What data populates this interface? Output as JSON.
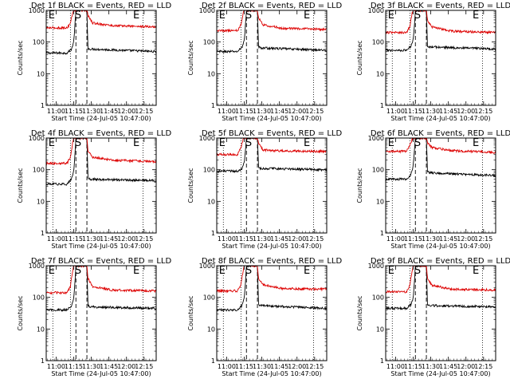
{
  "chart_data": [
    {
      "type": "line",
      "title": "Det 1f BLACK = Events, RED = LLD",
      "xlabel": "Start Time (24-Jul-05 10:47:00)",
      "ylabel": "Counts/sec",
      "yscale": "log",
      "ylim": [
        1,
        1000
      ],
      "xlim": [
        0,
        100
      ],
      "x_ticks": [
        "11:00",
        "11:15",
        "11:30",
        "11:45",
        "12:00",
        "12:15"
      ],
      "y_ticks": [
        "1",
        "10",
        "100",
        "1000"
      ],
      "markers": [
        "E",
        "S",
        "E"
      ],
      "baseline": {
        "black": 50,
        "red": 300
      },
      "series": [
        {
          "color": "#000000",
          "values": [
            [
              0,
              45
            ],
            [
              19,
              45
            ],
            [
              23,
              60
            ],
            [
              25,
              100
            ],
            [
              26,
              300
            ],
            [
              27,
              1000
            ],
            [
              37,
              1000
            ],
            [
              38,
              60
            ],
            [
              40,
              60
            ],
            [
              100,
              50
            ]
          ]
        },
        {
          "color": "#dd0000",
          "values": [
            [
              0,
              280
            ],
            [
              19,
              280
            ],
            [
              22,
              400
            ],
            [
              24,
              800
            ],
            [
              25,
              1000
            ],
            [
              37,
              1000
            ],
            [
              38,
              700
            ],
            [
              42,
              400
            ],
            [
              60,
              330
            ],
            [
              100,
              300
            ]
          ]
        }
      ]
    },
    {
      "type": "line",
      "title": "Det 2f BLACK = Events, RED = LLD",
      "xlabel": "Start Time (24-Jul-05 10:47:00)",
      "ylabel": "Counts/sec",
      "yscale": "log",
      "ylim": [
        1,
        1000
      ],
      "xlim": [
        0,
        100
      ],
      "x_ticks": [
        "11:00",
        "11:15",
        "11:30",
        "11:45",
        "12:00",
        "12:15"
      ],
      "y_ticks": [
        "1",
        "10",
        "100",
        "1000"
      ],
      "markers": [
        "E",
        "S",
        "E"
      ],
      "baseline": {
        "black": 55,
        "red": 250
      },
      "series": [
        {
          "color": "#000000",
          "values": [
            [
              0,
              50
            ],
            [
              19,
              50
            ],
            [
              23,
              70
            ],
            [
              25,
              110
            ],
            [
              26,
              300
            ],
            [
              27,
              1000
            ],
            [
              37,
              1000
            ],
            [
              38,
              70
            ],
            [
              40,
              65
            ],
            [
              100,
              55
            ]
          ]
        },
        {
          "color": "#dd0000",
          "values": [
            [
              0,
              230
            ],
            [
              19,
              230
            ],
            [
              22,
              350
            ],
            [
              24,
              800
            ],
            [
              25,
              1000
            ],
            [
              37,
              1000
            ],
            [
              38,
              600
            ],
            [
              42,
              350
            ],
            [
              60,
              270
            ],
            [
              100,
              250
            ]
          ]
        }
      ]
    },
    {
      "type": "line",
      "title": "Det 3f BLACK = Events, RED = LLD",
      "xlabel": "Start Time (24-Jul-05 10:47:00)",
      "ylabel": "Counts/sec",
      "yscale": "log",
      "ylim": [
        1,
        1000
      ],
      "xlim": [
        0,
        100
      ],
      "x_ticks": [
        "11:00",
        "11:15",
        "11:30",
        "11:45",
        "12:00",
        "12:15"
      ],
      "y_ticks": [
        "1",
        "10",
        "100",
        "1000"
      ],
      "markers": [
        "E",
        "S",
        "E"
      ],
      "baseline": {
        "black": 60,
        "red": 200
      },
      "series": [
        {
          "color": "#000000",
          "values": [
            [
              0,
              55
            ],
            [
              19,
              55
            ],
            [
              23,
              75
            ],
            [
              25,
              120
            ],
            [
              26,
              300
            ],
            [
              27,
              1000
            ],
            [
              37,
              1000
            ],
            [
              38,
              75
            ],
            [
              40,
              70
            ],
            [
              100,
              60
            ]
          ]
        },
        {
          "color": "#dd0000",
          "values": [
            [
              0,
              200
            ],
            [
              19,
              200
            ],
            [
              22,
              320
            ],
            [
              24,
              800
            ],
            [
              25,
              1000
            ],
            [
              37,
              1000
            ],
            [
              38,
              500
            ],
            [
              42,
              300
            ],
            [
              60,
              220
            ],
            [
              100,
              200
            ]
          ]
        }
      ]
    },
    {
      "type": "line",
      "title": "Det 4f BLACK = Events, RED = LLD",
      "xlabel": "Start Time (24-Jul-05 10:47:00)",
      "ylabel": "Counts/sec",
      "yscale": "log",
      "ylim": [
        1,
        1000
      ],
      "xlim": [
        0,
        100
      ],
      "x_ticks": [
        "11:00",
        "11:15",
        "11:30",
        "11:45",
        "12:00",
        "12:15"
      ],
      "y_ticks": [
        "1",
        "10",
        "100",
        "1000"
      ],
      "markers": [
        "E",
        "S",
        "E"
      ],
      "baseline": {
        "black": 45,
        "red": 180
      },
      "series": [
        {
          "color": "#000000",
          "values": [
            [
              0,
              35
            ],
            [
              19,
              35
            ],
            [
              23,
              50
            ],
            [
              25,
              90
            ],
            [
              26,
              250
            ],
            [
              27,
              1000
            ],
            [
              37,
              1000
            ],
            [
              38,
              55
            ],
            [
              40,
              50
            ],
            [
              100,
              45
            ]
          ]
        },
        {
          "color": "#dd0000",
          "values": [
            [
              0,
              160
            ],
            [
              19,
              160
            ],
            [
              22,
              250
            ],
            [
              24,
              700
            ],
            [
              25,
              1000
            ],
            [
              37,
              1000
            ],
            [
              38,
              400
            ],
            [
              42,
              250
            ],
            [
              60,
              200
            ],
            [
              100,
              180
            ]
          ]
        }
      ]
    },
    {
      "type": "line",
      "title": "Det 5f BLACK = Events, RED = LLD",
      "xlabel": "Start Time (24-Jul-05 10:47:00)",
      "ylabel": "Counts/sec",
      "yscale": "log",
      "ylim": [
        1,
        1000
      ],
      "xlim": [
        0,
        100
      ],
      "x_ticks": [
        "11:00",
        "11:15",
        "11:30",
        "11:45",
        "12:00",
        "12:15"
      ],
      "y_ticks": [
        "1",
        "10",
        "100",
        "1000"
      ],
      "markers": [
        "E",
        "S",
        "E"
      ],
      "baseline": {
        "black": 100,
        "red": 380
      },
      "series": [
        {
          "color": "#000000",
          "values": [
            [
              0,
              90
            ],
            [
              19,
              90
            ],
            [
              23,
              110
            ],
            [
              25,
              170
            ],
            [
              26,
              400
            ],
            [
              27,
              1000
            ],
            [
              37,
              1000
            ],
            [
              38,
              120
            ],
            [
              40,
              110
            ],
            [
              100,
              100
            ]
          ]
        },
        {
          "color": "#dd0000",
          "values": [
            [
              0,
              300
            ],
            [
              19,
              300
            ],
            [
              22,
              500
            ],
            [
              24,
              900
            ],
            [
              25,
              1000
            ],
            [
              37,
              1000
            ],
            [
              38,
              700
            ],
            [
              42,
              420
            ],
            [
              60,
              390
            ],
            [
              100,
              380
            ]
          ]
        }
      ]
    },
    {
      "type": "line",
      "title": "Det 6f BLACK = Events, RED = LLD",
      "xlabel": "Start Time (24-Jul-05 10:47:00)",
      "ylabel": "Counts/sec",
      "yscale": "log",
      "ylim": [
        1,
        1000
      ],
      "xlim": [
        0,
        100
      ],
      "x_ticks": [
        "11:00",
        "11:15",
        "11:30",
        "11:45",
        "12:00",
        "12:15"
      ],
      "y_ticks": [
        "1",
        "10",
        "100",
        "1000"
      ],
      "markers": [
        "E",
        "S",
        "E"
      ],
      "baseline": {
        "black": 65,
        "red": 350
      },
      "series": [
        {
          "color": "#000000",
          "values": [
            [
              0,
              50
            ],
            [
              19,
              50
            ],
            [
              23,
              70
            ],
            [
              25,
              130
            ],
            [
              26,
              350
            ],
            [
              27,
              1000
            ],
            [
              37,
              1000
            ],
            [
              38,
              90
            ],
            [
              40,
              80
            ],
            [
              100,
              65
            ]
          ]
        },
        {
          "color": "#dd0000",
          "values": [
            [
              0,
              380
            ],
            [
              19,
              380
            ],
            [
              22,
              600
            ],
            [
              24,
              900
            ],
            [
              25,
              1000
            ],
            [
              37,
              1000
            ],
            [
              38,
              700
            ],
            [
              42,
              500
            ],
            [
              60,
              400
            ],
            [
              100,
              350
            ]
          ]
        }
      ]
    },
    {
      "type": "line",
      "title": "Det 7f BLACK = Events, RED = LLD",
      "xlabel": "Start Time (24-Jul-05 10:47:00)",
      "ylabel": "Counts/sec",
      "yscale": "log",
      "ylim": [
        1,
        1000
      ],
      "xlim": [
        0,
        100
      ],
      "x_ticks": [
        "11:00",
        "11:15",
        "11:30",
        "11:45",
        "12:00",
        "12:15"
      ],
      "y_ticks": [
        "1",
        "10",
        "100",
        "1000"
      ],
      "markers": [
        "E",
        "S",
        "E"
      ],
      "baseline": {
        "black": 45,
        "red": 160
      },
      "series": [
        {
          "color": "#000000",
          "values": [
            [
              0,
              40
            ],
            [
              19,
              40
            ],
            [
              23,
              55
            ],
            [
              25,
              90
            ],
            [
              26,
              250
            ],
            [
              27,
              1000
            ],
            [
              37,
              1000
            ],
            [
              38,
              55
            ],
            [
              40,
              50
            ],
            [
              100,
              45
            ]
          ]
        },
        {
          "color": "#dd0000",
          "values": [
            [
              0,
              140
            ],
            [
              19,
              140
            ],
            [
              22,
              220
            ],
            [
              24,
              700
            ],
            [
              25,
              1000
            ],
            [
              37,
              1000
            ],
            [
              38,
              400
            ],
            [
              42,
              220
            ],
            [
              60,
              170
            ],
            [
              100,
              160
            ]
          ]
        }
      ]
    },
    {
      "type": "line",
      "title": "Det 8f BLACK = Events, RED = LLD",
      "xlabel": "Start Time (24-Jul-05 10:47:00)",
      "ylabel": "Counts/sec",
      "yscale": "log",
      "ylim": [
        1,
        1000
      ],
      "xlim": [
        0,
        100
      ],
      "x_ticks": [
        "11:00",
        "11:15",
        "11:30",
        "11:45",
        "12:00",
        "12:15"
      ],
      "y_ticks": [
        "1",
        "10",
        "100",
        "1000"
      ],
      "markers": [
        "E",
        "S",
        "E"
      ],
      "baseline": {
        "black": 45,
        "red": 180
      },
      "series": [
        {
          "color": "#000000",
          "values": [
            [
              0,
              40
            ],
            [
              19,
              40
            ],
            [
              23,
              55
            ],
            [
              25,
              95
            ],
            [
              26,
              260
            ],
            [
              27,
              1000
            ],
            [
              37,
              1000
            ],
            [
              38,
              60
            ],
            [
              40,
              55
            ],
            [
              100,
              45
            ]
          ]
        },
        {
          "color": "#dd0000",
          "values": [
            [
              0,
              160
            ],
            [
              19,
              160
            ],
            [
              22,
              250
            ],
            [
              24,
              700
            ],
            [
              25,
              1000
            ],
            [
              37,
              1000
            ],
            [
              38,
              400
            ],
            [
              42,
              250
            ],
            [
              60,
              190
            ],
            [
              100,
              180
            ]
          ]
        }
      ]
    },
    {
      "type": "line",
      "title": "Det 9f BLACK = Events, RED = LLD",
      "xlabel": "Start Time (24-Jul-05 10:47:00)",
      "ylabel": "Counts/sec",
      "yscale": "log",
      "ylim": [
        1,
        1000
      ],
      "xlim": [
        0,
        100
      ],
      "x_ticks": [
        "11:00",
        "11:15",
        "11:30",
        "11:45",
        "12:00",
        "12:15"
      ],
      "y_ticks": [
        "1",
        "10",
        "100",
        "1000"
      ],
      "markers": [
        "E",
        "S",
        "E"
      ],
      "baseline": {
        "black": 50,
        "red": 170
      },
      "series": [
        {
          "color": "#000000",
          "values": [
            [
              0,
              45
            ],
            [
              19,
              45
            ],
            [
              23,
              60
            ],
            [
              25,
              95
            ],
            [
              26,
              260
            ],
            [
              27,
              1000
            ],
            [
              37,
              1000
            ],
            [
              38,
              60
            ],
            [
              40,
              55
            ],
            [
              100,
              50
            ]
          ]
        },
        {
          "color": "#dd0000",
          "values": [
            [
              0,
              150
            ],
            [
              19,
              150
            ],
            [
              22,
              240
            ],
            [
              24,
              700
            ],
            [
              25,
              1000
            ],
            [
              37,
              1000
            ],
            [
              38,
              400
            ],
            [
              42,
              240
            ],
            [
              60,
              180
            ],
            [
              100,
              170
            ]
          ]
        }
      ]
    }
  ]
}
